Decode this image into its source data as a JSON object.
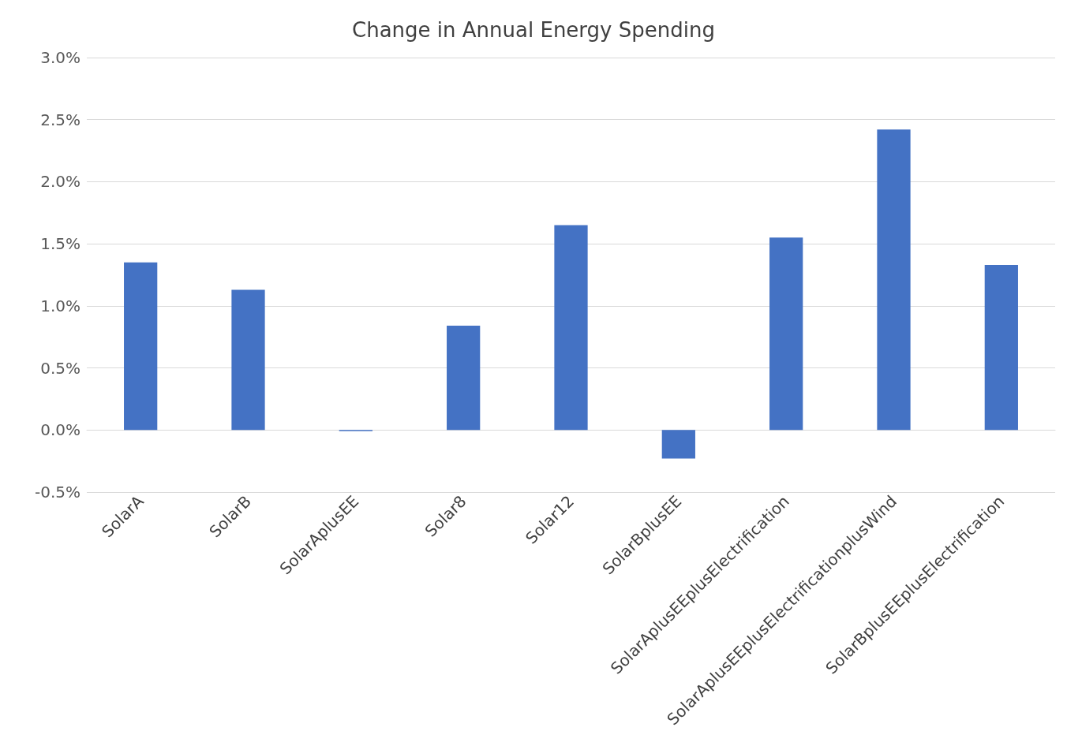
{
  "chart_data": {
    "type": "bar",
    "title": "Change in Annual Energy Spending",
    "categories": [
      "SolarA",
      "SolarB",
      "SolarAplusEE",
      "Solar8",
      "Solar12",
      "SolarBplusEE",
      "SolarAplusEEplusElectrification",
      "SolarAplusEEplusElectrificationplusWind",
      "SolarBplusEEplusElectrification"
    ],
    "values": [
      1.35,
      1.13,
      -0.01,
      0.84,
      1.65,
      -0.23,
      1.55,
      2.42,
      1.33
    ],
    "color": "#4472c4",
    "ylim": [
      -0.5,
      3
    ],
    "yticks": [
      {
        "value": -0.5,
        "label": "-0.5%"
      },
      {
        "value": 0,
        "label": "0.0%"
      },
      {
        "value": 0.5,
        "label": "0.5%"
      },
      {
        "value": 1,
        "label": "1.0%"
      },
      {
        "value": 1.5,
        "label": "1.5%"
      },
      {
        "value": 2,
        "label": "2.0%"
      },
      {
        "value": 2.5,
        "label": "2.5%"
      },
      {
        "value": 3,
        "label": "3.0%"
      }
    ],
    "grid": "y"
  }
}
